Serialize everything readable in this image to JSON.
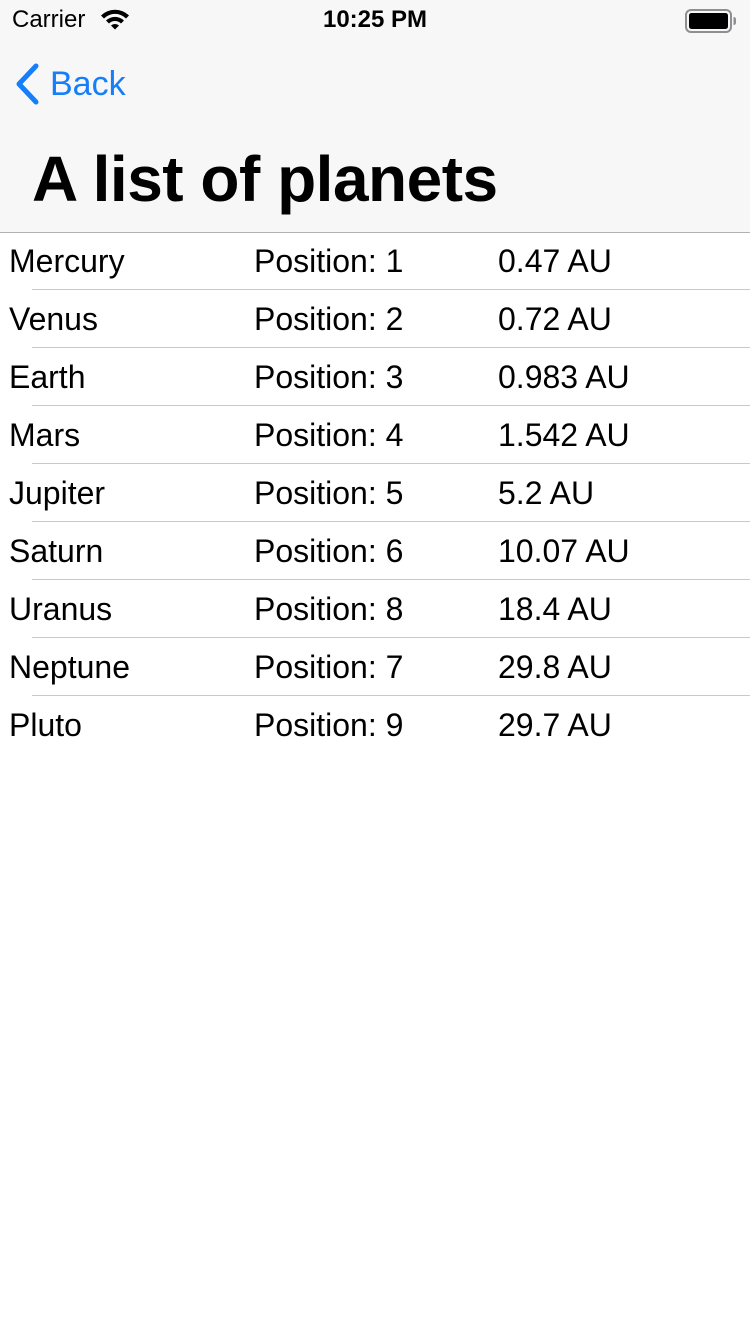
{
  "status_bar": {
    "carrier": "Carrier",
    "time": "10:25 PM"
  },
  "nav": {
    "back_label": "Back",
    "title": "A list of planets"
  },
  "colors": {
    "accent": "#157efb",
    "header_bg": "#f7f7f7",
    "separator": "#c8c7cc"
  },
  "planets": [
    {
      "name": "Mercury",
      "position": "Position: 1",
      "distance": "0.47 AU"
    },
    {
      "name": "Venus",
      "position": "Position: 2",
      "distance": "0.72 AU"
    },
    {
      "name": "Earth",
      "position": "Position: 3",
      "distance": "0.983 AU"
    },
    {
      "name": "Mars",
      "position": "Position: 4",
      "distance": "1.542 AU"
    },
    {
      "name": "Jupiter",
      "position": "Position: 5",
      "distance": "5.2 AU"
    },
    {
      "name": "Saturn",
      "position": "Position: 6",
      "distance": "10.07 AU"
    },
    {
      "name": "Uranus",
      "position": "Position: 8",
      "distance": "18.4 AU"
    },
    {
      "name": "Neptune",
      "position": "Position: 7",
      "distance": "29.8 AU"
    },
    {
      "name": "Pluto",
      "position": "Position: 9",
      "distance": "29.7 AU"
    }
  ]
}
